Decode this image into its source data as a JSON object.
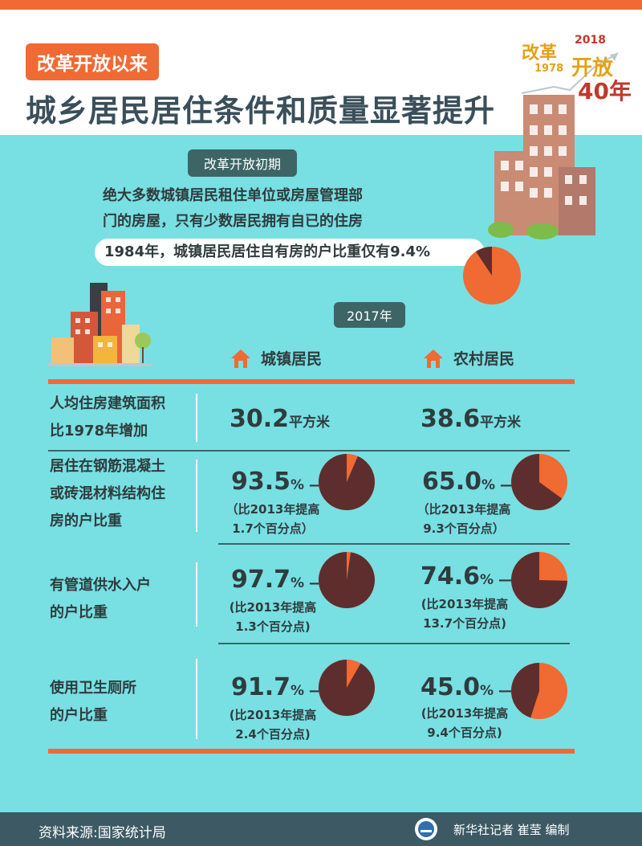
{
  "header": {
    "kicker": "改革开放以来",
    "title": "城乡居民居住条件和质量显著提升",
    "logo": {
      "line1": "改革",
      "year_top": "2018",
      "year_bottom": "1978",
      "line2": "开放",
      "line3": "40年"
    }
  },
  "early": {
    "pill": "改革开放初期",
    "text_line1": "绝大多数城镇居民租住单位或房屋管理部",
    "text_line2": "门的房屋，只有少数居民拥有自已的住房",
    "stat": "1984年，城镇居民居住自有房的户比重仅有9.4%",
    "pie_fraction": 0.094
  },
  "year_pill": "2017年",
  "columns": {
    "urban": "城镇居民",
    "rural": "农村居民"
  },
  "rows": [
    {
      "label": [
        "人均住房建筑面积",
        "比1978年增加"
      ],
      "urban": {
        "value": "30.2",
        "unit": "平方米"
      },
      "rural": {
        "value": "38.6",
        "unit": "平方米"
      }
    },
    {
      "label": [
        "居住在钢筋混凝土",
        "或砖混材料结构住",
        "房的户比重"
      ],
      "urban": {
        "value": "93.5",
        "unit": "%",
        "note1": "（比2013年提高",
        "note2": "1.7个百分点）",
        "fraction": 0.935
      },
      "rural": {
        "value": "65.0",
        "unit": "%",
        "note1": "（比2013年提高",
        "note2": "9.3个百分点）",
        "fraction": 0.65
      }
    },
    {
      "label": [
        "有管道供水入户",
        "的户比重"
      ],
      "urban": {
        "value": "97.7",
        "unit": "%",
        "note1": "(比2013年提高",
        "note2": "1.3个百分点)",
        "fraction": 0.977
      },
      "rural": {
        "value": "74.6",
        "unit": "%",
        "note1": "(比2013年提高",
        "note2": "13.7个百分点)",
        "fraction": 0.746
      }
    },
    {
      "label": [
        "使用卫生厕所",
        "的户比重"
      ],
      "urban": {
        "value": "91.7",
        "unit": "%",
        "note1": "(比2013年提高",
        "note2": "2.4个百分点)",
        "fraction": 0.917
      },
      "rural": {
        "value": "45.0",
        "unit": "%",
        "note1": "(比2013年提高",
        "note2": "9.4个百分点)",
        "fraction": 0.45
      }
    }
  ],
  "footer": {
    "source": "资料来源:国家统计局",
    "credit": "新华社记者 崔莹 编制"
  },
  "colors": {
    "accent": "#f06a33",
    "dark_slice": "#5e2e2e",
    "background": "#78dfe3",
    "dark_teal": "#3e6565"
  }
}
